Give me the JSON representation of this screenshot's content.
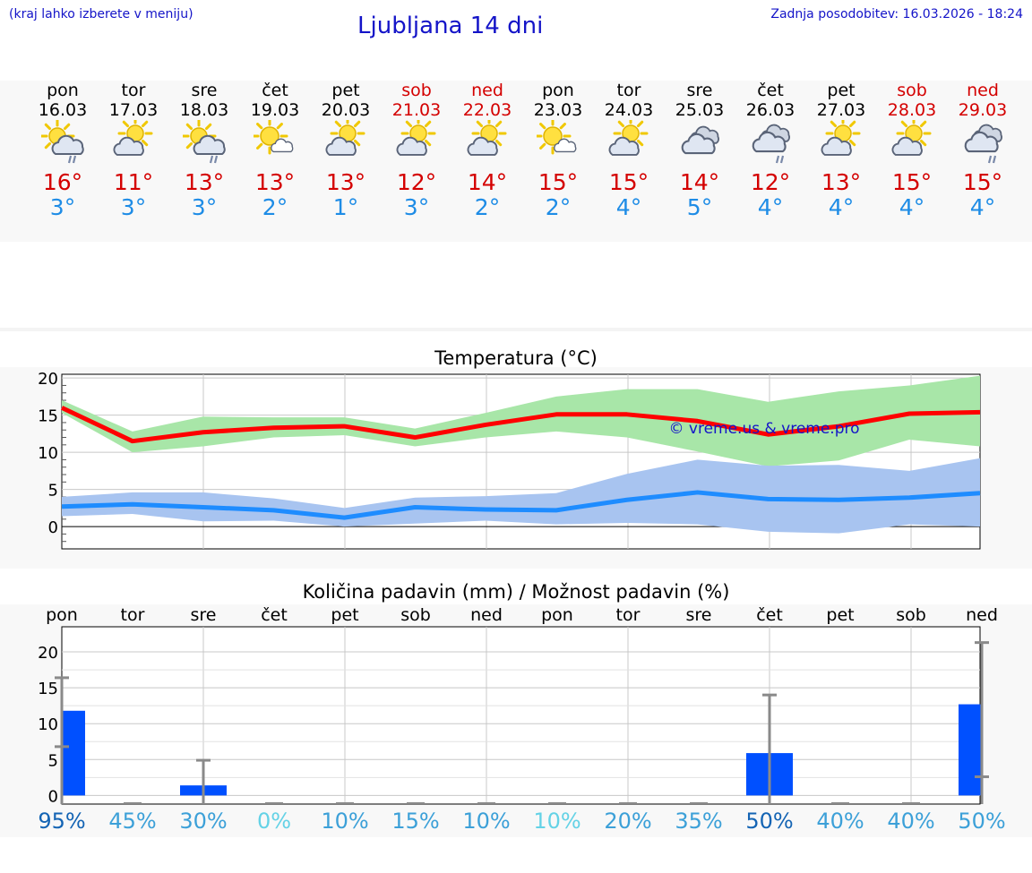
{
  "header": {
    "hint": "(kraj lahko izberete v meniju)",
    "title": "Ljubljana 14 dni",
    "updated": "Zadnja posodobitev: 16.03.2026 - 18:24"
  },
  "days": [
    {
      "name": "pon",
      "date": "16.03",
      "weekend": false,
      "icon": "sun-cloud-rain-icon",
      "tmax": "16°",
      "tmin": "3°"
    },
    {
      "name": "tor",
      "date": "17.03",
      "weekend": false,
      "icon": "sun-cloud-icon",
      "tmax": "11°",
      "tmin": "3°"
    },
    {
      "name": "sre",
      "date": "18.03",
      "weekend": false,
      "icon": "sun-cloud-rain-icon",
      "tmax": "13°",
      "tmin": "3°"
    },
    {
      "name": "čet",
      "date": "19.03",
      "weekend": false,
      "icon": "sun-small-cloud-icon",
      "tmax": "13°",
      "tmin": "2°"
    },
    {
      "name": "pet",
      "date": "20.03",
      "weekend": false,
      "icon": "sun-cloud-icon",
      "tmax": "13°",
      "tmin": "1°"
    },
    {
      "name": "sob",
      "date": "21.03",
      "weekend": true,
      "icon": "sun-cloud-icon",
      "tmax": "12°",
      "tmin": "3°"
    },
    {
      "name": "ned",
      "date": "22.03",
      "weekend": true,
      "icon": "sun-cloud-icon",
      "tmax": "14°",
      "tmin": "2°"
    },
    {
      "name": "pon",
      "date": "23.03",
      "weekend": false,
      "icon": "sun-small-cloud-icon",
      "tmax": "15°",
      "tmin": "2°"
    },
    {
      "name": "tor",
      "date": "24.03",
      "weekend": false,
      "icon": "sun-cloud-icon",
      "tmax": "15°",
      "tmin": "4°"
    },
    {
      "name": "sre",
      "date": "25.03",
      "weekend": false,
      "icon": "cloud-icon",
      "tmax": "14°",
      "tmin": "5°"
    },
    {
      "name": "čet",
      "date": "26.03",
      "weekend": false,
      "icon": "cloud-rain-icon",
      "tmax": "12°",
      "tmin": "4°"
    },
    {
      "name": "pet",
      "date": "27.03",
      "weekend": false,
      "icon": "sun-cloud-icon",
      "tmax": "13°",
      "tmin": "4°"
    },
    {
      "name": "sob",
      "date": "28.03",
      "weekend": true,
      "icon": "sun-cloud-icon",
      "tmax": "15°",
      "tmin": "4°"
    },
    {
      "name": "ned",
      "date": "29.03",
      "weekend": true,
      "icon": "cloud-rain-icon",
      "tmax": "15°",
      "tmin": "4°"
    }
  ],
  "colors": {
    "max": "#ff0000",
    "max_band": "#a8e6a8",
    "min": "#1e8cff",
    "min_band": "#a8c4f0",
    "bar": "#0050ff",
    "weekend": "#d40000"
  },
  "chart_data": [
    {
      "type": "line",
      "title": "Temperatura (°C)",
      "watermark": "© vreme.us & vreme.pro",
      "ylim": [
        -3,
        20.5
      ],
      "yticks": [
        0,
        5,
        10,
        15,
        20
      ],
      "series": [
        {
          "role": "max",
          "values": [
            16,
            11.5,
            12.7,
            13.3,
            13.5,
            12,
            13.7,
            15.1,
            15.1,
            14.2,
            12.4,
            13.5,
            15.2,
            15.4
          ]
        },
        {
          "role": "max_band_upper",
          "values": [
            17,
            12.8,
            14.8,
            14.7,
            14.7,
            13.2,
            15.3,
            17.5,
            18.5,
            18.5,
            16.8,
            18.2,
            19,
            20.3
          ]
        },
        {
          "role": "max_band_lower",
          "values": [
            15.3,
            10,
            10.8,
            12,
            12.3,
            10.8,
            12,
            12.8,
            12,
            10.1,
            8.1,
            8.9,
            11.7,
            10.8
          ]
        },
        {
          "role": "min",
          "values": [
            2.7,
            3,
            2.6,
            2.2,
            1.2,
            2.6,
            2.3,
            2.2,
            3.6,
            4.6,
            3.7,
            3.6,
            3.9,
            4.5
          ]
        },
        {
          "role": "min_band_upper",
          "values": [
            4,
            4.6,
            4.6,
            3.8,
            2.5,
            3.9,
            4.1,
            4.5,
            7.1,
            9,
            8.2,
            8.3,
            7.5,
            9.2
          ]
        },
        {
          "role": "min_band_lower",
          "values": [
            1.4,
            1.7,
            0.7,
            0.8,
            0,
            0.4,
            0.8,
            0.3,
            0.5,
            0.3,
            -0.7,
            -0.9,
            0.3,
            0
          ]
        }
      ]
    },
    {
      "type": "bar",
      "title": "Količina padavin (mm) / Možnost padavin (%)",
      "ylim": [
        -1.2,
        23.5
      ],
      "yticks": [
        0,
        5,
        10,
        15,
        20
      ],
      "categories": [
        "pon",
        "tor",
        "sre",
        "čet",
        "pet",
        "sob",
        "ned",
        "pon",
        "tor",
        "sre",
        "čet",
        "pet",
        "sob",
        "ned"
      ],
      "values": [
        11.8,
        0,
        1.4,
        0,
        0,
        0,
        0,
        0,
        0,
        0,
        5.9,
        0,
        0,
        12.7
      ],
      "range_low": [
        6.8,
        0,
        0,
        0,
        0,
        0,
        0,
        0,
        0,
        0,
        0,
        0,
        0,
        2.6
      ],
      "range_high": [
        16.4,
        0,
        4.9,
        0,
        0,
        0,
        0,
        0,
        0,
        0,
        14,
        0,
        0,
        21.3
      ],
      "probability": [
        "95%",
        "45%",
        "30%",
        "0%",
        "10%",
        "15%",
        "10%",
        "10%",
        "20%",
        "35%",
        "50%",
        "40%",
        "40%",
        "50%"
      ],
      "probability_colors": [
        "#1464b4",
        "#3ca0d8",
        "#3ca0d8",
        "#64d2e6",
        "#3ca0d8",
        "#3ca0d8",
        "#3ca0d8",
        "#64d2e6",
        "#3ca0d8",
        "#3ca0d8",
        "#1464b4",
        "#3ca0d8",
        "#3ca0d8",
        "#3ca0d8"
      ]
    }
  ]
}
